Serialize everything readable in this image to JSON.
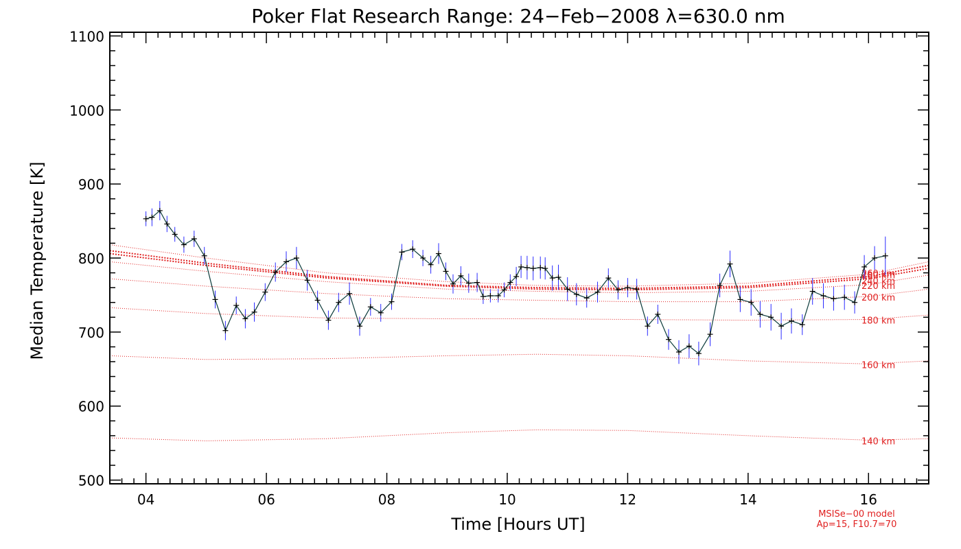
{
  "chart_data": {
    "type": "line",
    "title": "Poker Flat Research Range: 24−Feb−2008 λ=630.0 nm",
    "xlabel": "Time [Hours UT]",
    "ylabel": "Median Temperature [K]",
    "xlim": [
      3.4,
      17.0
    ],
    "ylim": [
      495,
      1105
    ],
    "x_ticks": [
      4,
      6,
      8,
      10,
      12,
      14,
      16
    ],
    "x_tick_labels": [
      "04",
      "06",
      "08",
      "10",
      "12",
      "14",
      "16"
    ],
    "y_ticks": [
      500,
      600,
      700,
      800,
      900,
      1000,
      1100
    ],
    "y_tick_labels": [
      "500",
      "600",
      "700",
      "800",
      "900",
      "1000",
      "1100"
    ],
    "colors": {
      "data_line": "#0a3a3a",
      "error_bars": "#2a2aff",
      "markers": "#000000",
      "model": "#e02020",
      "axes": "#000000"
    },
    "series": [
      {
        "x": [
          4.0,
          4.1,
          4.23,
          4.35,
          4.48,
          4.63,
          4.8,
          4.97,
          5.15,
          5.32,
          5.5,
          5.65,
          5.8,
          5.98,
          6.15,
          6.33,
          6.5,
          6.68,
          6.85,
          7.03,
          7.2,
          7.38,
          7.55,
          7.73,
          7.9,
          8.08,
          8.25,
          8.43,
          8.6,
          8.73,
          8.86,
          8.98,
          9.1,
          9.23,
          9.36,
          9.5,
          9.6,
          9.72,
          9.85,
          9.95,
          10.05,
          10.15,
          10.23,
          10.33,
          10.43,
          10.55,
          10.63,
          10.75,
          10.85,
          11.0,
          11.15,
          11.32,
          11.5,
          11.68,
          11.84,
          12.0,
          12.15,
          12.33,
          12.5,
          12.68,
          12.85,
          13.02,
          13.18,
          13.37,
          13.53,
          13.7,
          13.87,
          14.05,
          14.2,
          14.38,
          14.55,
          14.72,
          14.9,
          15.07,
          15.25,
          15.42,
          15.6,
          15.77,
          15.93,
          16.1,
          16.28
        ],
        "y": [
          853,
          855,
          864,
          846,
          832,
          818,
          826,
          803,
          744,
          702,
          736,
          718,
          727,
          754,
          781,
          795,
          800,
          770,
          743,
          716,
          740,
          752,
          708,
          734,
          726,
          741,
          808,
          812,
          800,
          791,
          806,
          782,
          765,
          776,
          766,
          767,
          748,
          749,
          749,
          757,
          767,
          775,
          788,
          787,
          786,
          787,
          786,
          773,
          774,
          758,
          751,
          746,
          754,
          773,
          757,
          760,
          758,
          708,
          724,
          690,
          673,
          681,
          671,
          697,
          763,
          792,
          744,
          740,
          724,
          720,
          708,
          715,
          710,
          755,
          749,
          745,
          747,
          740,
          788,
          800,
          803
        ],
        "yerr": [
          10,
          12,
          13,
          11,
          10,
          11,
          11,
          12,
          12,
          13,
          12,
          13,
          13,
          12,
          13,
          14,
          15,
          14,
          13,
          13,
          13,
          15,
          13,
          12,
          12,
          11,
          11,
          12,
          11,
          12,
          14,
          12,
          13,
          13,
          13,
          13,
          10,
          9,
          9,
          10,
          11,
          13,
          15,
          16,
          16,
          15,
          15,
          17,
          17,
          16,
          15,
          13,
          14,
          13,
          13,
          13,
          14,
          13,
          13,
          14,
          16,
          16,
          16,
          16,
          16,
          18,
          17,
          18,
          18,
          18,
          18,
          17,
          14,
          18,
          17,
          16,
          17,
          15,
          16,
          16,
          26
        ]
      }
    ],
    "model": {
      "label_line1": "MSISe−00 model",
      "label_line2": "Ap=15, F10.7=70",
      "curves": [
        {
          "label": "140 km",
          "x": [
            3.4,
            5.0,
            7.0,
            9.0,
            10.5,
            12.0,
            14.0,
            16.0,
            17.0
          ],
          "y": [
            557,
            553,
            556,
            564,
            568,
            567,
            560,
            554,
            556
          ]
        },
        {
          "label": "160 km",
          "x": [
            3.4,
            5.0,
            7.0,
            9.0,
            10.5,
            12.0,
            14.0,
            16.0,
            17.0
          ],
          "y": [
            668,
            663,
            664,
            668,
            670,
            668,
            661,
            657,
            661
          ]
        },
        {
          "label": "180 km",
          "x": [
            3.4,
            5.0,
            7.0,
            9.0,
            10.5,
            12.0,
            14.0,
            16.0,
            17.0
          ],
          "y": [
            733,
            725,
            719,
            718,
            718,
            717,
            716,
            717,
            723
          ]
        },
        {
          "label": "200 km",
          "x": [
            3.4,
            5.0,
            7.0,
            9.0,
            10.5,
            12.0,
            14.0,
            16.0,
            17.0
          ],
          "y": [
            772,
            762,
            752,
            745,
            743,
            741,
            741,
            748,
            758
          ]
        },
        {
          "label": "220 km",
          "x": [
            3.4,
            5.0,
            7.0,
            9.0,
            10.5,
            12.0,
            14.0,
            16.0,
            17.0
          ],
          "y": [
            795,
            782,
            768,
            758,
            755,
            753,
            755,
            764,
            777
          ]
        },
        {
          "label": "240 km",
          "x": [
            3.4,
            5.0,
            7.0,
            9.0,
            10.5,
            12.0,
            14.0,
            16.0,
            17.0
          ],
          "y": [
            806,
            790,
            773,
            762,
            758,
            757,
            760,
            772,
            786
          ]
        },
        {
          "label": "260 km",
          "x": [
            3.4,
            5.0,
            7.0,
            9.0,
            10.5,
            12.0,
            14.0,
            16.0,
            17.0
          ],
          "y": [
            810,
            793,
            775,
            763,
            760,
            759,
            762,
            775,
            790
          ]
        },
        {
          "label": "280 km",
          "x": [
            3.4,
            5.0,
            7.0,
            9.0,
            10.5,
            12.0,
            14.0,
            16.0,
            17.0
          ],
          "y": [
            818,
            800,
            780,
            768,
            763,
            762,
            766,
            778,
            795
          ]
        }
      ]
    }
  }
}
